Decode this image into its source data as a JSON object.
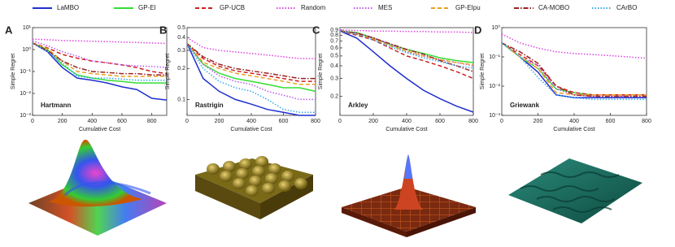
{
  "chart_data": [
    {
      "type": "line",
      "panel": "A",
      "annotation": "Hartmann",
      "x_label": "Cumulative Cost",
      "y_label": "Simple Regret",
      "y_scale": "log",
      "x": [
        0,
        100,
        200,
        300,
        400,
        500,
        600,
        700,
        800,
        900
      ],
      "xlim": [
        0,
        900
      ],
      "xticks": [
        0,
        200,
        400,
        600,
        800
      ],
      "ylim": [
        0.001,
        10
      ],
      "yticks": [
        {
          "value": 0.001,
          "label": "10⁻³"
        },
        {
          "value": 0.01,
          "label": "10⁻²"
        },
        {
          "value": 0.1,
          "label": "10⁻¹"
        },
        {
          "value": 1,
          "label": "10⁰"
        },
        {
          "value": 10,
          "label": "10¹"
        }
      ],
      "series": [
        {
          "name": "LaMBO",
          "color": "#1f2fd0",
          "dash": "solid",
          "values": [
            2,
            0.8,
            0.15,
            0.05,
            0.04,
            0.03,
            0.02,
            0.015,
            0.006,
            0.005
          ]
        },
        {
          "name": "GP-EI",
          "color": "#33dd33",
          "dash": "solid",
          "values": [
            2,
            1,
            0.2,
            0.07,
            0.05,
            0.04,
            0.035,
            0.03,
            0.03,
            0.03
          ]
        },
        {
          "name": "GP-UCB",
          "color": "#cc2222",
          "dash": "dashed",
          "values": [
            2,
            1.2,
            0.6,
            0.4,
            0.3,
            0.25,
            0.2,
            0.15,
            0.1,
            0.08
          ]
        },
        {
          "name": "Random",
          "color": "#dd44dd",
          "dash": "dotted",
          "values": [
            3,
            2.8,
            2.6,
            2.5,
            2.4,
            2.3,
            2.2,
            2.1,
            2,
            1.9
          ]
        },
        {
          "name": "MES",
          "color": "#bb55ee",
          "dash": "dotted",
          "values": [
            2.5,
            1.5,
            0.8,
            0.5,
            0.3,
            0.25,
            0.2,
            0.18,
            0.17,
            0.15
          ]
        },
        {
          "name": "GP-EIpu",
          "color": "#e8a020",
          "dash": "dashed",
          "values": [
            2,
            1.1,
            0.3,
            0.1,
            0.08,
            0.07,
            0.06,
            0.06,
            0.06,
            0.06
          ]
        },
        {
          "name": "CA-MOBO",
          "color": "#992222",
          "dash": "dashdot",
          "values": [
            2,
            0.9,
            0.3,
            0.15,
            0.1,
            0.09,
            0.08,
            0.08,
            0.07,
            0.07
          ]
        },
        {
          "name": "CArBO",
          "color": "#33aaee",
          "dash": "dotted",
          "values": [
            2,
            0.8,
            0.25,
            0.06,
            0.05,
            0.05,
            0.045,
            0.04,
            0.04,
            0.04
          ]
        }
      ]
    },
    {
      "type": "line",
      "panel": "B",
      "annotation": "Rastrigin",
      "x_label": "Cumulative Cost",
      "y_label": "Simple Regret",
      "y_scale": "log",
      "x": [
        0,
        100,
        200,
        300,
        400,
        500,
        600,
        700,
        800
      ],
      "xlim": [
        0,
        800
      ],
      "xticks": [
        0,
        200,
        400,
        600,
        800
      ],
      "ylim": [
        0.07,
        0.5
      ],
      "yticks": [
        0.1,
        0.2,
        0.3,
        0.4,
        0.5
      ],
      "series": [
        {
          "color": "#1f2fd0",
          "dash": "solid",
          "values": [
            0.35,
            0.16,
            0.12,
            0.1,
            0.09,
            0.08,
            0.075,
            0.07,
            0.07
          ]
        },
        {
          "color": "#33dd33",
          "dash": "solid",
          "values": [
            0.35,
            0.22,
            0.18,
            0.16,
            0.15,
            0.14,
            0.13,
            0.13,
            0.12
          ]
        },
        {
          "color": "#cc2222",
          "dash": "dashed",
          "values": [
            0.35,
            0.25,
            0.21,
            0.19,
            0.18,
            0.17,
            0.16,
            0.15,
            0.15
          ]
        },
        {
          "color": "#dd44dd",
          "dash": "dotted",
          "values": [
            0.4,
            0.32,
            0.3,
            0.29,
            0.28,
            0.27,
            0.26,
            0.25,
            0.25
          ]
        },
        {
          "color": "#bb55ee",
          "dash": "dotted",
          "values": [
            0.35,
            0.22,
            0.17,
            0.15,
            0.14,
            0.12,
            0.11,
            0.1,
            0.1
          ]
        },
        {
          "color": "#e8a020",
          "dash": "dashed",
          "values": [
            0.35,
            0.23,
            0.2,
            0.18,
            0.17,
            0.16,
            0.15,
            0.14,
            0.14
          ]
        },
        {
          "color": "#992222",
          "dash": "dashdot",
          "values": [
            0.35,
            0.26,
            0.22,
            0.2,
            0.19,
            0.18,
            0.17,
            0.16,
            0.16
          ]
        },
        {
          "color": "#33aaee",
          "dash": "dotted",
          "values": [
            0.35,
            0.2,
            0.15,
            0.13,
            0.12,
            0.1,
            0.08,
            0.075,
            0.075
          ]
        }
      ]
    },
    {
      "type": "line",
      "panel": "C",
      "annotation": "Arkley",
      "x_label": "Cumulative Cost",
      "y_label": "Simple Regret",
      "y_scale": "log",
      "x": [
        0,
        100,
        200,
        300,
        400,
        500,
        600,
        700,
        800
      ],
      "xlim": [
        0,
        800
      ],
      "xticks": [
        0,
        200,
        400,
        600,
        800
      ],
      "ylim": [
        0.13,
        0.95
      ],
      "yticks": [
        0.2,
        0.3,
        0.4,
        0.5,
        0.6,
        0.7,
        0.8,
        0.9
      ],
      "series": [
        {
          "color": "#1f2fd0",
          "dash": "solid",
          "values": [
            0.88,
            0.75,
            0.55,
            0.4,
            0.3,
            0.23,
            0.19,
            0.16,
            0.14
          ]
        },
        {
          "color": "#33dd33",
          "dash": "solid",
          "values": [
            0.88,
            0.85,
            0.75,
            0.65,
            0.58,
            0.53,
            0.48,
            0.45,
            0.43
          ]
        },
        {
          "color": "#cc2222",
          "dash": "dashed",
          "values": [
            0.88,
            0.8,
            0.72,
            0.6,
            0.5,
            0.45,
            0.4,
            0.35,
            0.3
          ]
        },
        {
          "color": "#dd44dd",
          "dash": "dotted",
          "values": [
            0.9,
            0.89,
            0.88,
            0.88,
            0.87,
            0.87,
            0.86,
            0.86,
            0.85
          ]
        },
        {
          "color": "#bb55ee",
          "dash": "dotted",
          "values": [
            0.88,
            0.84,
            0.76,
            0.65,
            0.55,
            0.5,
            0.46,
            0.43,
            0.4
          ]
        },
        {
          "color": "#e8a020",
          "dash": "dashed",
          "values": [
            0.88,
            0.82,
            0.74,
            0.63,
            0.56,
            0.5,
            0.46,
            0.43,
            0.41
          ]
        },
        {
          "color": "#992222",
          "dash": "dashdot",
          "values": [
            0.88,
            0.84,
            0.75,
            0.66,
            0.58,
            0.52,
            0.45,
            0.4,
            0.35
          ]
        },
        {
          "color": "#33aaee",
          "dash": "dotted",
          "values": [
            0.88,
            0.82,
            0.72,
            0.62,
            0.54,
            0.48,
            0.44,
            0.4,
            0.38
          ]
        }
      ]
    },
    {
      "type": "line",
      "panel": "D",
      "annotation": "Griewank",
      "x_label": "Cumulative Cost",
      "y_label": "Simple Regret",
      "y_scale": "log",
      "x": [
        0,
        100,
        200,
        300,
        400,
        500,
        600,
        700,
        800
      ],
      "xlim": [
        0,
        800
      ],
      "xticks": [
        0,
        200,
        400,
        600,
        800
      ],
      "ylim": [
        0.001,
        1
      ],
      "yticks": [
        {
          "value": 0.001,
          "label": "10⁻³"
        },
        {
          "value": 0.01,
          "label": "10⁻²"
        },
        {
          "value": 0.1,
          "label": "10⁻¹"
        },
        {
          "value": 1,
          "label": "10⁰"
        }
      ],
      "series": [
        {
          "color": "#1f2fd0",
          "dash": "solid",
          "values": [
            0.3,
            0.1,
            0.03,
            0.005,
            0.004,
            0.004,
            0.004,
            0.004,
            0.004
          ]
        },
        {
          "color": "#33dd33",
          "dash": "solid",
          "values": [
            0.3,
            0.1,
            0.04,
            0.008,
            0.006,
            0.005,
            0.005,
            0.005,
            0.005
          ]
        },
        {
          "color": "#cc2222",
          "dash": "dashed",
          "values": [
            0.3,
            0.12,
            0.05,
            0.01,
            0.006,
            0.005,
            0.005,
            0.005,
            0.005
          ]
        },
        {
          "color": "#dd44dd",
          "dash": "dotted",
          "values": [
            0.6,
            0.3,
            0.2,
            0.15,
            0.13,
            0.12,
            0.11,
            0.1,
            0.09
          ]
        },
        {
          "color": "#bb55ee",
          "dash": "dotted",
          "values": [
            0.3,
            0.1,
            0.05,
            0.008,
            0.005,
            0.0045,
            0.0045,
            0.0045,
            0.0045
          ]
        },
        {
          "color": "#e8a020",
          "dash": "dashed",
          "values": [
            0.3,
            0.1,
            0.04,
            0.006,
            0.005,
            0.005,
            0.005,
            0.005,
            0.005
          ]
        },
        {
          "color": "#992222",
          "dash": "dashdot",
          "values": [
            0.3,
            0.15,
            0.06,
            0.01,
            0.005,
            0.0045,
            0.0045,
            0.0045,
            0.0045
          ]
        },
        {
          "color": "#33aaee",
          "dash": "dotted",
          "values": [
            0.3,
            0.1,
            0.02,
            0.005,
            0.004,
            0.0035,
            0.0035,
            0.0035,
            0.0035
          ]
        }
      ]
    }
  ]
}
